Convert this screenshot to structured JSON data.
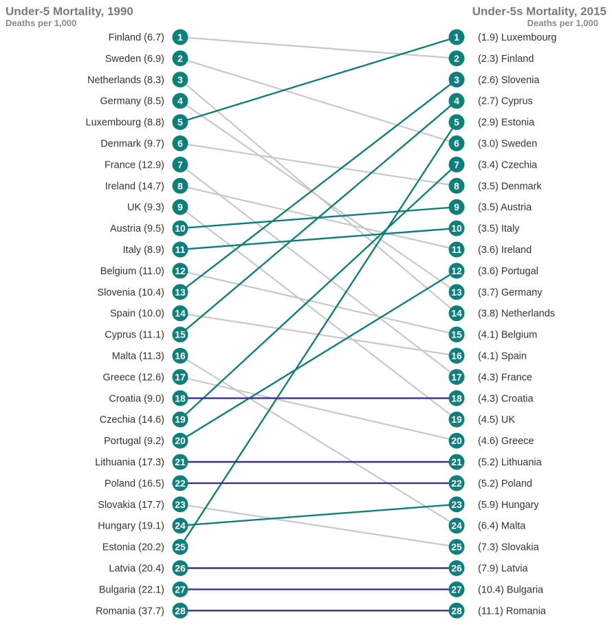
{
  "chart_data": {
    "type": "slope",
    "left": {
      "title": "Under-5 Mortality, 1990",
      "subtitle": "Deaths per 1,000",
      "entries": [
        {
          "rank": 1,
          "country": "Finland",
          "value": 6.7,
          "label": "Finland (6.7)"
        },
        {
          "rank": 2,
          "country": "Sweden",
          "value": 6.9,
          "label": "Sweden (6.9)"
        },
        {
          "rank": 3,
          "country": "Netherlands",
          "value": 8.3,
          "label": "Netherlands (8.3)"
        },
        {
          "rank": 4,
          "country": "Germany",
          "value": 8.5,
          "label": "Germany (8.5)"
        },
        {
          "rank": 5,
          "country": "Luxembourg",
          "value": 8.8,
          "label": "Luxembourg (8.8)"
        },
        {
          "rank": 6,
          "country": "Denmark",
          "value": 9.7,
          "label": "Denmark (9.7)"
        },
        {
          "rank": 7,
          "country": "France",
          "value": 12.9,
          "label": "France (12.9)"
        },
        {
          "rank": 8,
          "country": "Ireland",
          "value": 14.7,
          "label": "Ireland (14.7)"
        },
        {
          "rank": 9,
          "country": "UK",
          "value": 9.3,
          "label": "UK (9.3)"
        },
        {
          "rank": 10,
          "country": "Austria",
          "value": 9.5,
          "label": "Austria (9.5)"
        },
        {
          "rank": 11,
          "country": "Italy",
          "value": 8.9,
          "label": "Italy (8.9)"
        },
        {
          "rank": 12,
          "country": "Belgium",
          "value": 11.0,
          "label": "Belgium (11.0)"
        },
        {
          "rank": 13,
          "country": "Slovenia",
          "value": 10.4,
          "label": "Slovenia (10.4)"
        },
        {
          "rank": 14,
          "country": "Spain",
          "value": 10.0,
          "label": "Spain (10.0)"
        },
        {
          "rank": 15,
          "country": "Cyprus",
          "value": 11.1,
          "label": "Cyprus (11.1)"
        },
        {
          "rank": 16,
          "country": "Malta",
          "value": 11.3,
          "label": "Malta (11.3)"
        },
        {
          "rank": 17,
          "country": "Greece",
          "value": 12.6,
          "label": "Greece (12.6)"
        },
        {
          "rank": 18,
          "country": "Croatia",
          "value": 9.0,
          "label": "Croatia (9.0)"
        },
        {
          "rank": 19,
          "country": "Czechia",
          "value": 14.6,
          "label": "Czechia (14.6)"
        },
        {
          "rank": 20,
          "country": "Portugal",
          "value": 9.2,
          "label": "Portugal (9.2)"
        },
        {
          "rank": 21,
          "country": "Lithuania",
          "value": 17.3,
          "label": "Lithuania (17.3)"
        },
        {
          "rank": 22,
          "country": "Poland",
          "value": 16.5,
          "label": "Poland (16.5)"
        },
        {
          "rank": 23,
          "country": "Slovakia",
          "value": 17.7,
          "label": "Slovakia (17.7)"
        },
        {
          "rank": 24,
          "country": "Hungary",
          "value": 19.1,
          "label": "Hungary (19.1)"
        },
        {
          "rank": 25,
          "country": "Estonia",
          "value": 20.2,
          "label": "Estonia (20.2)"
        },
        {
          "rank": 26,
          "country": "Latvia",
          "value": 20.4,
          "label": "Latvia (20.4)"
        },
        {
          "rank": 27,
          "country": "Bulgaria",
          "value": 22.1,
          "label": "Bulgaria (22.1)"
        },
        {
          "rank": 28,
          "country": "Romania",
          "value": 37.7,
          "label": "Romania (37.7)"
        }
      ]
    },
    "right": {
      "title": "Under-5s Mortality, 2015",
      "subtitle": "Deaths per 1,000",
      "entries": [
        {
          "rank": 1,
          "country": "Luxembourg",
          "value": 1.9,
          "label": "(1.9) Luxembourg"
        },
        {
          "rank": 2,
          "country": "Finland",
          "value": 2.3,
          "label": "(2.3) Finland"
        },
        {
          "rank": 3,
          "country": "Slovenia",
          "value": 2.6,
          "label": "(2.6) Slovenia"
        },
        {
          "rank": 4,
          "country": "Cyprus",
          "value": 2.7,
          "label": "(2.7) Cyprus"
        },
        {
          "rank": 5,
          "country": "Estonia",
          "value": 2.9,
          "label": "(2.9) Estonia"
        },
        {
          "rank": 6,
          "country": "Sweden",
          "value": 3.0,
          "label": "(3.0) Sweden"
        },
        {
          "rank": 7,
          "country": "Czechia",
          "value": 3.4,
          "label": "(3.4) Czechia"
        },
        {
          "rank": 8,
          "country": "Denmark",
          "value": 3.5,
          "label": "(3.5) Denmark"
        },
        {
          "rank": 9,
          "country": "Austria",
          "value": 3.5,
          "label": "(3.5) Austria"
        },
        {
          "rank": 10,
          "country": "Italy",
          "value": 3.5,
          "label": "(3.5) Italy"
        },
        {
          "rank": 11,
          "country": "Ireland",
          "value": 3.6,
          "label": "(3.6) Ireland"
        },
        {
          "rank": 12,
          "country": "Portugal",
          "value": 3.6,
          "label": "(3.6) Portugal"
        },
        {
          "rank": 13,
          "country": "Germany",
          "value": 3.7,
          "label": "(3.7) Germany"
        },
        {
          "rank": 14,
          "country": "Netherlands",
          "value": 3.8,
          "label": "(3.8) Netherlands"
        },
        {
          "rank": 15,
          "country": "Belgium",
          "value": 4.1,
          "label": "(4.1) Belgium"
        },
        {
          "rank": 16,
          "country": "Spain",
          "value": 4.1,
          "label": "(4.1) Spain"
        },
        {
          "rank": 17,
          "country": "France",
          "value": 4.3,
          "label": "(4.3) France"
        },
        {
          "rank": 18,
          "country": "Croatia",
          "value": 4.3,
          "label": "(4.3) Croatia"
        },
        {
          "rank": 19,
          "country": "UK",
          "value": 4.5,
          "label": "(4.5) UK"
        },
        {
          "rank": 20,
          "country": "Greece",
          "value": 4.6,
          "label": "(4.6) Greece"
        },
        {
          "rank": 21,
          "country": "Lithuania",
          "value": 5.2,
          "label": "(5.2) Lithuania"
        },
        {
          "rank": 22,
          "country": "Poland",
          "value": 5.2,
          "label": "(5.2) Poland"
        },
        {
          "rank": 23,
          "country": "Hungary",
          "value": 5.9,
          "label": "(5.9) Hungary"
        },
        {
          "rank": 24,
          "country": "Malta",
          "value": 6.4,
          "label": "(6.4) Malta"
        },
        {
          "rank": 25,
          "country": "Slovakia",
          "value": 7.3,
          "label": "(7.3) Slovakia"
        },
        {
          "rank": 26,
          "country": "Latvia",
          "value": 7.9,
          "label": "(7.9) Latvia"
        },
        {
          "rank": 27,
          "country": "Bulgaria",
          "value": 10.4,
          "label": "(10.4) Bulgaria"
        },
        {
          "rank": 28,
          "country": "Romania",
          "value": 11.1,
          "label": "(11.1) Romania"
        }
      ]
    },
    "links": [
      {
        "country": "Finland",
        "from": 1,
        "to": 2,
        "status": "down"
      },
      {
        "country": "Sweden",
        "from": 2,
        "to": 6,
        "status": "down"
      },
      {
        "country": "Netherlands",
        "from": 3,
        "to": 14,
        "status": "down"
      },
      {
        "country": "Germany",
        "from": 4,
        "to": 13,
        "status": "down"
      },
      {
        "country": "Luxembourg",
        "from": 5,
        "to": 1,
        "status": "up"
      },
      {
        "country": "Denmark",
        "from": 6,
        "to": 8,
        "status": "down"
      },
      {
        "country": "France",
        "from": 7,
        "to": 17,
        "status": "down"
      },
      {
        "country": "Ireland",
        "from": 8,
        "to": 11,
        "status": "down"
      },
      {
        "country": "UK",
        "from": 9,
        "to": 19,
        "status": "down"
      },
      {
        "country": "Austria",
        "from": 10,
        "to": 9,
        "status": "up"
      },
      {
        "country": "Italy",
        "from": 11,
        "to": 10,
        "status": "up"
      },
      {
        "country": "Belgium",
        "from": 12,
        "to": 15,
        "status": "down"
      },
      {
        "country": "Slovenia",
        "from": 13,
        "to": 3,
        "status": "up"
      },
      {
        "country": "Spain",
        "from": 14,
        "to": 16,
        "status": "down"
      },
      {
        "country": "Cyprus",
        "from": 15,
        "to": 4,
        "status": "up"
      },
      {
        "country": "Malta",
        "from": 16,
        "to": 24,
        "status": "down"
      },
      {
        "country": "Greece",
        "from": 17,
        "to": 20,
        "status": "down"
      },
      {
        "country": "Croatia",
        "from": 18,
        "to": 18,
        "status": "same"
      },
      {
        "country": "Czechia",
        "from": 19,
        "to": 7,
        "status": "up"
      },
      {
        "country": "Portugal",
        "from": 20,
        "to": 12,
        "status": "up"
      },
      {
        "country": "Lithuania",
        "from": 21,
        "to": 21,
        "status": "same"
      },
      {
        "country": "Poland",
        "from": 22,
        "to": 22,
        "status": "same"
      },
      {
        "country": "Slovakia",
        "from": 23,
        "to": 25,
        "status": "down"
      },
      {
        "country": "Hungary",
        "from": 24,
        "to": 23,
        "status": "up"
      },
      {
        "country": "Estonia",
        "from": 25,
        "to": 5,
        "status": "up"
      },
      {
        "country": "Latvia",
        "from": 26,
        "to": 26,
        "status": "same"
      },
      {
        "country": "Bulgaria",
        "from": 27,
        "to": 27,
        "status": "same"
      },
      {
        "country": "Romania",
        "from": 28,
        "to": 28,
        "status": "same"
      }
    ],
    "colors": {
      "up": "#0e7f7a",
      "down": "#c8c8c8",
      "same": "#3b2f8c",
      "circle": "#0e7f7a",
      "circle_text": "#ffffff",
      "label": "#333333",
      "title": "#7a7a7a",
      "subtitle": "#8a8a8a"
    }
  }
}
